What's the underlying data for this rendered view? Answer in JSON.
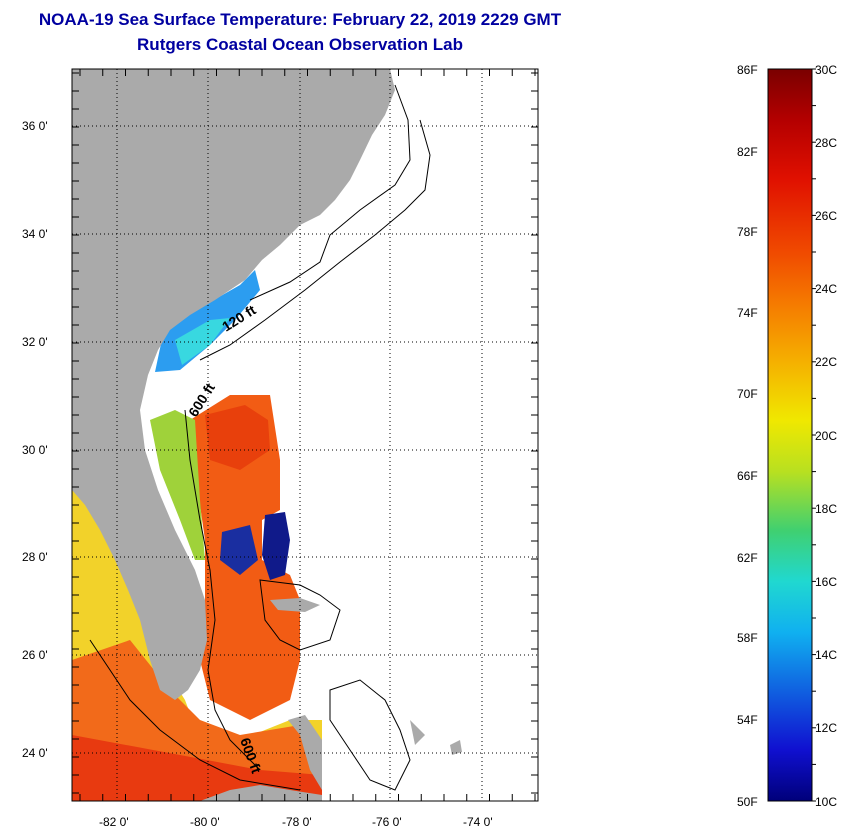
{
  "header": {
    "title": "NOAA-19 Sea Surface Temperature:  February 22, 2019 2229 GMT",
    "subtitle": "Rutgers Coastal Ocean Observation Lab"
  },
  "map": {
    "lat_labels": [
      "36 0'",
      "34 0'",
      "32 0'",
      "30 0'",
      "28 0'",
      "26 0'",
      "24 0'"
    ],
    "lon_labels": [
      "-82 0'",
      "-80 0'",
      "-78 0'",
      "-76 0'",
      "-74 0'"
    ],
    "contour_labels": [
      "120 ft",
      "600 ft",
      "600 ft"
    ]
  },
  "colorbar": {
    "f_labels": [
      "86F",
      "82F",
      "78F",
      "74F",
      "70F",
      "66F",
      "62F",
      "58F",
      "54F",
      "50F"
    ],
    "c_labels": [
      "30C",
      "28C",
      "26C",
      "24C",
      "22C",
      "20C",
      "18C",
      "16C",
      "14C",
      "12C",
      "10C"
    ],
    "range_c": [
      10,
      30
    ],
    "range_f": [
      50,
      86
    ]
  },
  "colors": {
    "land": "#aaaaaa",
    "title": "#0000a0",
    "warm": "#f05a10",
    "mild": "#f4d020",
    "cool": "#20b8f0",
    "cold": "#101090"
  }
}
